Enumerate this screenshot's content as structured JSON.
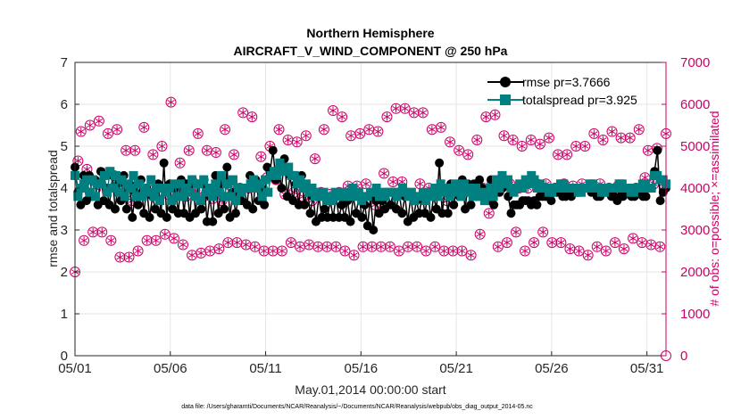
{
  "chart_data": {
    "type": "line",
    "title": "Northern Hemisphere",
    "subtitle": "AIRCRAFT_V_WIND_COMPONENT @ 250 hPa",
    "xlabel": "May.01,2014 00:00:00 start",
    "ylabel_left": "rmse and totalspread",
    "ylabel_right": "# of obs: o=possible; ×=assimilated",
    "footnote": "data file: /Users/gharamti/Documents/NCAR/Reanalysis/~/Documents/NCAR/Reanalysis/webpub/obs_diag_output_2014-05.nc",
    "x_range_days": [
      0,
      31
    ],
    "x_ticks": [
      {
        "day": 0,
        "label": "05/01"
      },
      {
        "day": 5,
        "label": "05/06"
      },
      {
        "day": 10,
        "label": "05/11"
      },
      {
        "day": 15,
        "label": "05/16"
      },
      {
        "day": 20,
        "label": "05/21"
      },
      {
        "day": 25,
        "label": "05/26"
      },
      {
        "day": 30,
        "label": "05/31"
      }
    ],
    "ylim_left": [
      0,
      7
    ],
    "yticks_left": [
      "0",
      "1",
      "2",
      "3",
      "4",
      "5",
      "6",
      "7"
    ],
    "ylim_right": [
      0,
      7000
    ],
    "yticks_right": [
      "0",
      "1000",
      "2000",
      "3000",
      "4000",
      "5000",
      "6000",
      "7000"
    ],
    "grid": true,
    "legend_position": "top-right",
    "series": [
      {
        "name": "rmse pr=3.7666",
        "axis": "left",
        "color": "#000000",
        "marker": "circle",
        "values": [
          4.5,
          3.9,
          3.6,
          4.3,
          3.7,
          4.3,
          3.8,
          4.2,
          3.6,
          4.4,
          3.7,
          4.0,
          3.6,
          4.3,
          3.5,
          4.1,
          3.7,
          4.3,
          3.5,
          4.1,
          3.3,
          3.9,
          3.6,
          4.2,
          3.4,
          4.0,
          3.3,
          3.8,
          3.5,
          4.1,
          3.4,
          4.6,
          3.3,
          4.1,
          3.5,
          4.0,
          3.4,
          4.2,
          3.4,
          4.1,
          3.3,
          4.2,
          3.4,
          4.1,
          3.5,
          4.2,
          3.2,
          3.8,
          3.2,
          4.3,
          3.4,
          4.1,
          3.5,
          4.5,
          3.3,
          3.9,
          3.4,
          3.8,
          3.7,
          4.0,
          3.6,
          4.3,
          3.5,
          4.2,
          3.7,
          4.0,
          3.6,
          4.5,
          4.4,
          4.9,
          4.2,
          4.4,
          4.0,
          4.7,
          3.8,
          4.3,
          3.7,
          4.1,
          3.6,
          4.3,
          3.6,
          4.0,
          3.4,
          3.8,
          3.2,
          3.8,
          3.3,
          3.5,
          3.3,
          3.7,
          3.3,
          3.8,
          3.3,
          3.6,
          3.3,
          3.7,
          3.2,
          3.8,
          3.4,
          3.8,
          3.3,
          3.6,
          3.1,
          3.8,
          3.0,
          3.7,
          3.4,
          3.7,
          3.5,
          3.9,
          3.6,
          3.9,
          3.5,
          3.9,
          3.4,
          3.8,
          3.2,
          3.8,
          3.3,
          3.7,
          3.4,
          3.8,
          3.4,
          3.9,
          3.3,
          3.8,
          3.5,
          4.6,
          3.4,
          4.0,
          3.4,
          4.1,
          3.6,
          4.0,
          3.8,
          4.2,
          3.5,
          4.1,
          3.6,
          4.1,
          3.8,
          4.2,
          4.0,
          3.9,
          3.7,
          4.2,
          3.6,
          4.2,
          3.9,
          4.0,
          4.2,
          3.8,
          3.4,
          3.6,
          3.6,
          3.6,
          3.7,
          3.7,
          3.7,
          3.6,
          3.7,
          3.6,
          3.8,
          3.8,
          3.8,
          3.8,
          3.7,
          3.9,
          3.9,
          3.9,
          3.8,
          3.8,
          3.9,
          3.8,
          3.9,
          3.9,
          4.0,
          4.0,
          4.0,
          4.0,
          3.9,
          3.9,
          3.8,
          3.8,
          3.9,
          3.9,
          3.9,
          3.8,
          3.8,
          3.7,
          3.8,
          3.8,
          3.9,
          3.9,
          3.8,
          3.8,
          3.9,
          3.9,
          3.8,
          3.8,
          4.0,
          4.0,
          4.4,
          4.9,
          3.7,
          3.9,
          4.0
        ]
      },
      {
        "name": "totalspread pr=3.925",
        "axis": "left",
        "color": "#008080",
        "marker": "square",
        "values": [
          4.3,
          3.8,
          4.0,
          4.1,
          4.2,
          3.9,
          4.2,
          3.8,
          4.1,
          4.1,
          4.3,
          3.9,
          4.4,
          4.0,
          4.3,
          3.9,
          4.2,
          3.8,
          4.1,
          4.0,
          4.3,
          3.8,
          4.1,
          3.8,
          4.0,
          3.9,
          4.2,
          3.8,
          4.0,
          3.7,
          4.0,
          3.9,
          4.0,
          3.7,
          4.1,
          3.8,
          4.1,
          3.8,
          4.0,
          3.9,
          4.2,
          3.8,
          4.1,
          3.7,
          4.2,
          3.9,
          4.0,
          3.8,
          4.1,
          3.9,
          4.3,
          3.8,
          4.1,
          3.8,
          4.2,
          3.7,
          4.0,
          3.9,
          4.0,
          4.0,
          4.1,
          4.2,
          4.0,
          4.1,
          3.8,
          4.2,
          3.9,
          4.3,
          4.4,
          4.3,
          4.6,
          4.4,
          4.4,
          4.5,
          4.3,
          4.3,
          4.1,
          4.2,
          4.0,
          4.1,
          3.9,
          4.0,
          3.8,
          3.9,
          3.8,
          3.9,
          3.7,
          3.8,
          3.7,
          3.9,
          3.8,
          3.9,
          3.8,
          3.9,
          3.8,
          4.0,
          3.8,
          3.9,
          3.7,
          3.8,
          3.8,
          3.9,
          3.9,
          4.0,
          3.8,
          3.9,
          3.8,
          3.9,
          3.9,
          3.9,
          3.8,
          3.9,
          4.0,
          3.9,
          3.8,
          3.9,
          3.7,
          3.8,
          3.8,
          3.9,
          3.7,
          3.8,
          3.9,
          4.0,
          3.8,
          4.1,
          3.9,
          4.0,
          3.8,
          3.9,
          4.1,
          4.0,
          3.8,
          4.1,
          3.9,
          4.0,
          3.8,
          4.0,
          3.9,
          3.8,
          3.7,
          3.9,
          4.0,
          3.8,
          4.2,
          4.0,
          4.3,
          4.1,
          4.2,
          4.0,
          3.9,
          4.0,
          4.1,
          4.0,
          4.2,
          4.1,
          4.3,
          4.2,
          4.0,
          4.1,
          4.0,
          4.0,
          3.9,
          3.9,
          4.0,
          4.0,
          4.1,
          4.1,
          4.0,
          4.0,
          4.0,
          4.0,
          3.9,
          3.9,
          4.0,
          4.0,
          4.1,
          4.1,
          4.0,
          4.0,
          3.9,
          3.9,
          4.0,
          4.0,
          4.0,
          4.0,
          4.1,
          4.1,
          4.0,
          4.0,
          3.9,
          3.9,
          4.0,
          4.0,
          4.1,
          4.1,
          4.0,
          4.0,
          4.3,
          4.3,
          4.2,
          4.2,
          4.1
        ]
      },
      {
        "name": "possible",
        "axis": "right",
        "color": "#cc0066",
        "marker": "circle-open",
        "values": [
          2000,
          4650,
          5350,
          2750,
          4450,
          5500,
          2950,
          4000,
          5600,
          2950,
          4350,
          5300,
          2750,
          4300,
          5400,
          2350,
          3800,
          4900,
          2350,
          3700,
          4900,
          2500,
          3850,
          5450,
          2750,
          3950,
          4800,
          2750,
          3800,
          5000,
          2900,
          3850,
          6050,
          2800,
          3950,
          4600,
          2650,
          3800,
          4900,
          2400,
          3950,
          5300,
          2450,
          3800,
          4900,
          2500,
          3750,
          4850,
          2550,
          3700,
          5400,
          2700,
          4050,
          4800,
          2700,
          4000,
          5800,
          2650,
          4000,
          5700,
          2600,
          4100,
          4750,
          2500,
          4250,
          5000,
          2500,
          4200,
          5400,
          2500,
          3850,
          5150,
          2700,
          3900,
          5100,
          2600,
          3800,
          5250,
          2650,
          3700,
          4700,
          2600,
          3900,
          5400,
          2600,
          3850,
          5850,
          2600,
          3900,
          5700,
          2500,
          4050,
          5250,
          2400,
          4050,
          5300,
          2600,
          4100,
          5400,
          2600,
          3600,
          5350,
          2600,
          4350,
          5700,
          2600,
          4150,
          5900,
          2500,
          4150,
          5900,
          2600,
          3850,
          5800,
          2600,
          4100,
          5800,
          2500,
          4000,
          5400,
          2600,
          3900,
          5450,
          2500,
          3700,
          5100,
          2500,
          4050,
          4900,
          2500,
          4000,
          4800,
          2400,
          4050,
          5150,
          2900,
          4000,
          5700,
          3400,
          4100,
          5750,
          2600,
          4000,
          5250,
          2700,
          4100,
          5150,
          2950,
          4000,
          5000,
          2500,
          4000,
          5150,
          2700,
          4100,
          5050,
          2950,
          4100,
          5200,
          2700,
          4000,
          4800,
          2700,
          4100,
          4800,
          2550,
          4050,
          5000,
          2500,
          4100,
          5000,
          2400,
          4000,
          5300,
          2600,
          4100,
          5150,
          2500,
          4000,
          5350,
          2700,
          4050,
          5200,
          2550,
          3900,
          5200,
          2800,
          4000,
          5400,
          2700,
          4250,
          4900,
          2650,
          4100,
          4950,
          2600,
          4100,
          5300
        ]
      },
      {
        "name": "assimilated",
        "axis": "right",
        "color": "#cc0066",
        "marker": "asterisk",
        "values": [
          2000,
          4650,
          5350,
          2750,
          4450,
          5500,
          2950,
          4000,
          5600,
          2950,
          4350,
          5300,
          2750,
          4300,
          5400,
          2350,
          3800,
          4900,
          2350,
          3700,
          4900,
          2500,
          3850,
          5450,
          2750,
          3950,
          4800,
          2750,
          3800,
          5000,
          2900,
          3850,
          6050,
          2800,
          3950,
          4600,
          2650,
          3800,
          4900,
          2400,
          3950,
          5300,
          2450,
          3800,
          4900,
          2500,
          3750,
          4850,
          2550,
          3700,
          5400,
          2700,
          4050,
          4800,
          2700,
          4000,
          5800,
          2650,
          4000,
          5700,
          2600,
          4100,
          4750,
          2500,
          4250,
          5000,
          2500,
          4200,
          5400,
          2500,
          3850,
          5150,
          2700,
          3900,
          5100,
          2600,
          3800,
          5250,
          2650,
          3700,
          4700,
          2600,
          3900,
          5400,
          2600,
          3850,
          5850,
          2600,
          3900,
          5700,
          2500,
          4050,
          5250,
          2400,
          4050,
          5300,
          2600,
          4100,
          5400,
          2600,
          3600,
          5350,
          2600,
          4350,
          5700,
          2600,
          4150,
          5900,
          2500,
          4150,
          5900,
          2600,
          3850,
          5800,
          2600,
          4100,
          5800,
          2500,
          4000,
          5400,
          2600,
          3900,
          5450,
          2500,
          3700,
          5100,
          2500,
          4050,
          4900,
          2500,
          4000,
          4800,
          2400,
          4050,
          5150,
          2900,
          4000,
          5700,
          3400,
          4100,
          5750,
          2600,
          4000,
          5250,
          2700,
          4100,
          5150,
          2950,
          4000,
          5000,
          2500,
          4000,
          5150,
          2700,
          4100,
          5050,
          2950,
          4100,
          5200,
          2700,
          4000,
          4800,
          2700,
          4100,
          4800,
          2550,
          4050,
          5000,
          2500,
          4100,
          5000,
          2400,
          4000,
          5300,
          2600,
          4100,
          5150,
          2500,
          4000,
          5350,
          2700,
          4050,
          5200,
          2550,
          3900,
          5200,
          2800,
          4000,
          5400,
          2700,
          4250,
          4900,
          2650,
          4100,
          4950,
          2600,
          4100,
          5300
        ]
      }
    ],
    "last_point": {
      "axis": "right",
      "value": 0,
      "marker": "circle-open"
    }
  }
}
